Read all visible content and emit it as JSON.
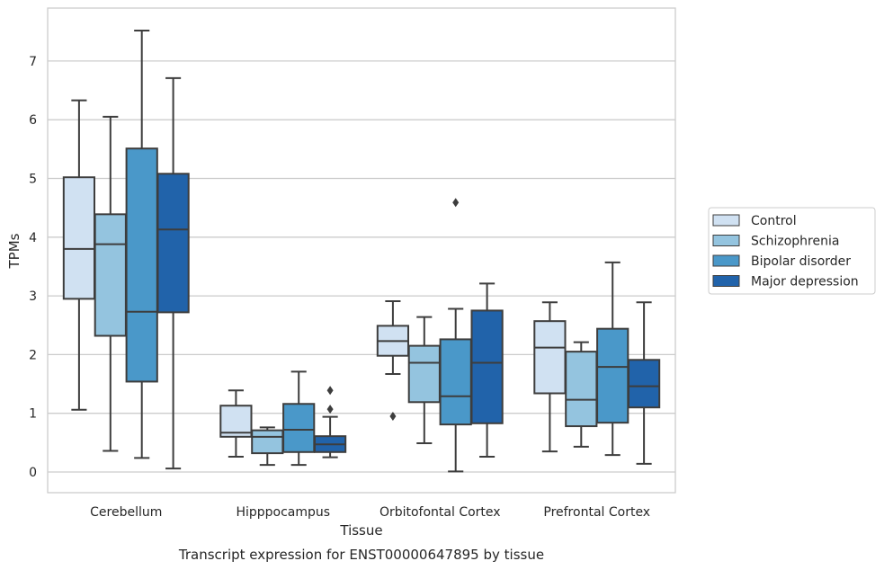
{
  "chart_data": {
    "type": "boxplot",
    "title": "Transcript expression for ENST00000647895 by tissue",
    "xlabel": "Tissue",
    "ylabel": "TPMs",
    "ylim": [
      -0.35,
      7.9
    ],
    "yticks": [
      0,
      1,
      2,
      3,
      4,
      5,
      6,
      7
    ],
    "grid": "horizontal",
    "legend_position": "right",
    "categories": [
      "Cerebellum",
      "Hipppocampus",
      "Orbitofontal Cortex",
      "Prefrontal Cortex"
    ],
    "series": [
      {
        "name": "Control",
        "color": "#d0e1f2",
        "boxes": [
          {
            "whislo": 1.06,
            "q1": 2.95,
            "med": 3.8,
            "q3": 5.02,
            "whishi": 6.33,
            "fliers": []
          },
          {
            "whislo": 0.26,
            "q1": 0.6,
            "med": 0.67,
            "q3": 1.13,
            "whishi": 1.39,
            "fliers": []
          },
          {
            "whislo": 1.67,
            "q1": 1.98,
            "med": 2.23,
            "q3": 2.49,
            "whishi": 2.91,
            "fliers": [
              0.95
            ]
          },
          {
            "whislo": 0.35,
            "q1": 1.34,
            "med": 2.12,
            "q3": 2.57,
            "whishi": 2.89,
            "fliers": []
          }
        ]
      },
      {
        "name": "Schizophrenia",
        "color": "#94c4df",
        "boxes": [
          {
            "whislo": 0.36,
            "q1": 2.32,
            "med": 3.88,
            "q3": 4.39,
            "whishi": 6.05,
            "fliers": []
          },
          {
            "whislo": 0.12,
            "q1": 0.32,
            "med": 0.6,
            "q3": 0.71,
            "whishi": 0.76,
            "fliers": []
          },
          {
            "whislo": 0.49,
            "q1": 1.19,
            "med": 1.86,
            "q3": 2.15,
            "whishi": 2.64,
            "fliers": []
          },
          {
            "whislo": 0.43,
            "q1": 0.78,
            "med": 1.23,
            "q3": 2.05,
            "whishi": 2.21,
            "fliers": []
          }
        ]
      },
      {
        "name": "Bipolar disorder",
        "color": "#4a98c9",
        "boxes": [
          {
            "whislo": 0.24,
            "q1": 1.54,
            "med": 2.73,
            "q3": 5.51,
            "whishi": 7.52,
            "fliers": []
          },
          {
            "whislo": 0.12,
            "q1": 0.34,
            "med": 0.72,
            "q3": 1.16,
            "whishi": 1.71,
            "fliers": []
          },
          {
            "whislo": 0.01,
            "q1": 0.81,
            "med": 1.29,
            "q3": 2.26,
            "whishi": 2.78,
            "fliers": [
              4.59
            ]
          },
          {
            "whislo": 0.29,
            "q1": 0.84,
            "med": 1.79,
            "q3": 2.44,
            "whishi": 3.57,
            "fliers": []
          }
        ]
      },
      {
        "name": "Major depression",
        "color": "#2163aa",
        "boxes": [
          {
            "whislo": 0.06,
            "q1": 2.72,
            "med": 4.13,
            "q3": 5.08,
            "whishi": 6.71,
            "fliers": []
          },
          {
            "whislo": 0.25,
            "q1": 0.34,
            "med": 0.47,
            "q3": 0.61,
            "whishi": 0.94,
            "fliers": [
              1.07,
              1.39
            ]
          },
          {
            "whislo": 0.26,
            "q1": 0.83,
            "med": 1.86,
            "q3": 2.75,
            "whishi": 3.21,
            "fliers": []
          },
          {
            "whislo": 0.14,
            "q1": 1.1,
            "med": 1.46,
            "q3": 1.91,
            "whishi": 2.89,
            "fliers": []
          }
        ]
      }
    ]
  }
}
